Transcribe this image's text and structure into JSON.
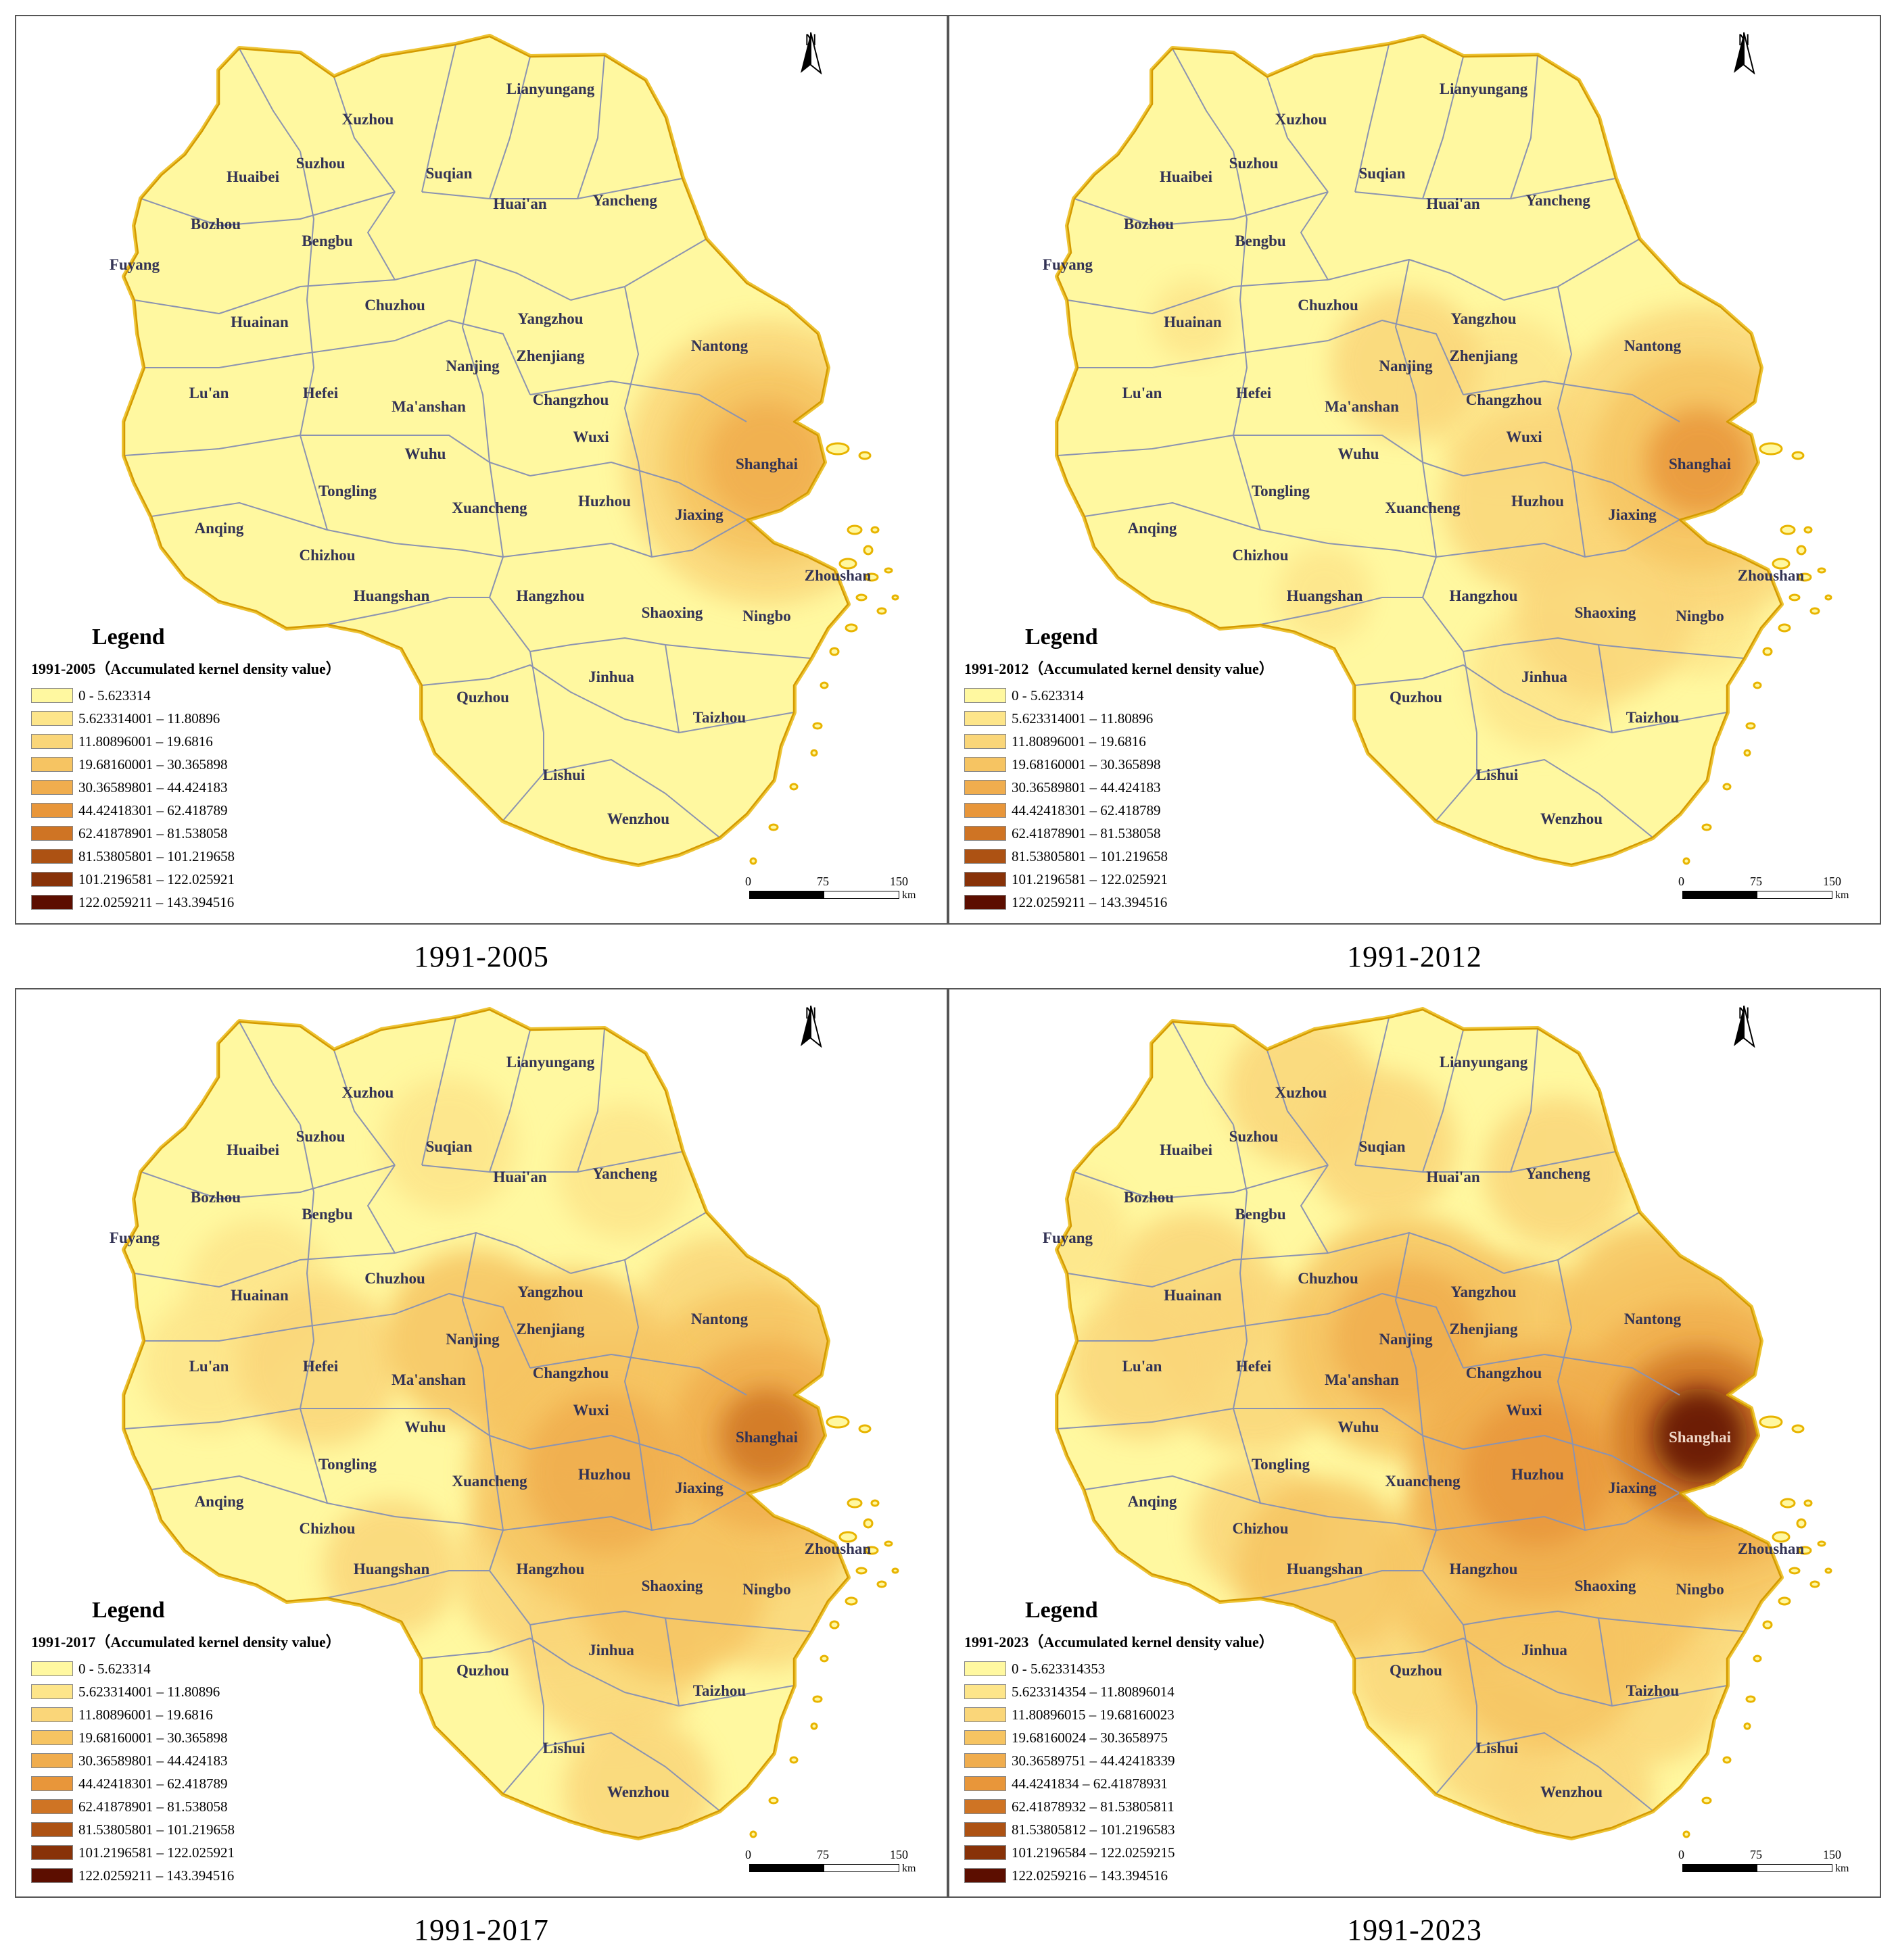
{
  "panels": [
    {
      "caption": "1991-2005",
      "legend_title": "Legend",
      "legend_subtitle": "1991-2005（Accumulated kernel density value）",
      "legend_items": [
        "0 - 5.623314",
        "5.623314001 – 11.80896",
        "11.80896001 – 19.6816",
        "19.68160001 – 30.365898",
        "30.36589801 – 44.424183",
        "44.42418301 – 62.418789",
        "62.41878901 – 81.538058",
        "81.53805801 – 101.219658",
        "101.2196581 – 122.025921",
        "122.0259211 – 143.394516"
      ],
      "hotspots": [
        {
          "city": "Shanghai",
          "level": 4,
          "r": 90
        },
        {
          "city": "Shanghai",
          "level": 3,
          "r": 150
        },
        {
          "city": "Shanghai",
          "level": 2,
          "r": 210
        }
      ]
    },
    {
      "caption": "1991-2012",
      "legend_title": "Legend",
      "legend_subtitle": "1991-2012（Accumulated kernel density value）",
      "legend_items": [
        "0 - 5.623314",
        "5.623314001 – 11.80896",
        "11.80896001 – 19.6816",
        "19.68160001 – 30.365898",
        "30.36589801 – 44.424183",
        "44.42418301 – 62.418789",
        "62.41878901 – 81.538058",
        "81.53805801 – 101.219658",
        "101.2196581 – 122.025921",
        "122.0259211 – 143.394516"
      ],
      "hotspots": [
        {
          "city": "Shanghai",
          "level": 5,
          "r": 80
        },
        {
          "city": "Shanghai",
          "level": 3,
          "r": 160
        },
        {
          "city": "Shanghai",
          "level": 2,
          "r": 230
        },
        {
          "city": "Nanjing",
          "level": 2,
          "r": 110
        },
        {
          "city": "Huzhou",
          "level": 2,
          "r": 140
        },
        {
          "city": "Shaoxing",
          "level": 2,
          "r": 130
        },
        {
          "city": "Jinhua",
          "level": 1,
          "r": 110
        },
        {
          "city": "Ningbo",
          "level": 1,
          "r": 90
        },
        {
          "city": "Changzhou",
          "level": 1,
          "r": 120
        },
        {
          "city": "Huangshan",
          "level": 1,
          "r": 70
        },
        {
          "city": "Huainan",
          "level": 1,
          "r": 60
        }
      ]
    },
    {
      "caption": "1991-2017",
      "legend_title": "Legend",
      "legend_subtitle": "1991-2017（Accumulated kernel density value）",
      "legend_items": [
        "0 - 5.623314",
        "5.623314001 – 11.80896",
        "11.80896001 – 19.6816",
        "19.68160001 – 30.365898",
        "30.36589801 – 44.424183",
        "44.42418301 – 62.418789",
        "62.41878901 – 81.538058",
        "81.53805801 – 101.219658",
        "101.2196581 – 122.025921",
        "122.0259211 – 143.394516"
      ],
      "hotspots": [
        {
          "city": "Shanghai",
          "level": 6,
          "r": 70
        },
        {
          "city": "Shanghai",
          "level": 4,
          "r": 140
        },
        {
          "city": "Shanghai",
          "level": 3,
          "r": 220
        },
        {
          "city": "Huzhou",
          "level": 4,
          "r": 120
        },
        {
          "city": "Huzhou",
          "level": 3,
          "r": 200
        },
        {
          "city": "Nanjing",
          "level": 3,
          "r": 130
        },
        {
          "city": "Changzhou",
          "level": 3,
          "r": 150
        },
        {
          "city": "Shaoxing",
          "level": 3,
          "r": 140
        },
        {
          "city": "Jinhua",
          "level": 2,
          "r": 140
        },
        {
          "city": "Ningbo",
          "level": 2,
          "r": 120
        },
        {
          "city": "Hefei",
          "level": 2,
          "r": 120
        },
        {
          "city": "Wenzhou",
          "level": 2,
          "r": 110
        },
        {
          "city": "Hangzhou",
          "level": 2,
          "r": 140
        },
        {
          "city": "Huangshan",
          "level": 2,
          "r": 100
        },
        {
          "city": "Suqian",
          "level": 1,
          "r": 100
        },
        {
          "city": "Yancheng",
          "level": 1,
          "r": 100
        },
        {
          "city": "Huainan",
          "level": 1,
          "r": 110
        },
        {
          "city": "Lu'an",
          "level": 1,
          "r": 100
        },
        {
          "city": "Nantong",
          "level": 2,
          "r": 120
        }
      ]
    },
    {
      "caption": "1991-2023",
      "legend_title": "Legend",
      "legend_subtitle": "1991-2023（Accumulated kernel density value）",
      "legend_items": [
        "0 - 5.623314353",
        "5.623314354 – 11.80896014",
        "11.80896015 – 19.68160023",
        "19.68160024 – 30.3658975",
        "30.36589751 – 44.42418339",
        "44.4241834 – 62.41878931",
        "62.41878932 – 81.53805811",
        "81.53805812 – 101.2196583",
        "101.2196584 – 122.0259215",
        "122.0259216 – 143.394516"
      ],
      "hotspots": [
        {
          "city": "Shanghai",
          "level": 9,
          "r": 70
        },
        {
          "city": "Shanghai",
          "level": 6,
          "r": 130
        },
        {
          "city": "Shanghai",
          "level": 4,
          "r": 200
        },
        {
          "city": "Shanghai",
          "level": 3,
          "r": 270
        },
        {
          "city": "Huzhou",
          "level": 5,
          "r": 110
        },
        {
          "city": "Huzhou",
          "level": 4,
          "r": 190
        },
        {
          "city": "Nanjing",
          "level": 4,
          "r": 110
        },
        {
          "city": "Nanjing",
          "level": 3,
          "r": 180
        },
        {
          "city": "Changzhou",
          "level": 3,
          "r": 170
        },
        {
          "city": "Nantong",
          "level": 3,
          "r": 140
        },
        {
          "city": "Shaoxing",
          "level": 3,
          "r": 150
        },
        {
          "city": "Jinhua",
          "level": 3,
          "r": 150
        },
        {
          "city": "Ningbo",
          "level": 2,
          "r": 130
        },
        {
          "city": "Hangzhou",
          "level": 3,
          "r": 150
        },
        {
          "city": "Huangshan",
          "level": 3,
          "r": 130
        },
        {
          "city": "Hefei",
          "level": 2,
          "r": 130
        },
        {
          "city": "Wenzhou",
          "level": 2,
          "r": 120
        },
        {
          "city": "Xuzhou",
          "level": 2,
          "r": 110
        },
        {
          "city": "Suqian",
          "level": 2,
          "r": 110
        },
        {
          "city": "Yancheng",
          "level": 2,
          "r": 110
        },
        {
          "city": "Huainan",
          "level": 2,
          "r": 120
        },
        {
          "city": "Lu'an",
          "level": 2,
          "r": 110
        },
        {
          "city": "Chizhou",
          "level": 2,
          "r": 100
        },
        {
          "city": "Fuyang",
          "level": 1,
          "r": 90
        },
        {
          "city": "Taizhou",
          "level": 2,
          "r": 110
        },
        {
          "city": "Quzhou",
          "level": 2,
          "r": 100
        },
        {
          "city": "Lishui",
          "level": 2,
          "r": 100
        }
      ]
    }
  ],
  "palette": [
    "#fff8a0",
    "#fde58a",
    "#fad679",
    "#f6c462",
    "#f0ad4e",
    "#e8963a",
    "#cf7424",
    "#ad5213",
    "#883208",
    "#5c0e00"
  ],
  "boundary_color": "#e8b400",
  "cities": [
    "Lianyungang",
    "Xuzhou",
    "Suzhou",
    "Huaibei",
    "Suqian",
    "Huai'an",
    "Yancheng",
    "Bozhou",
    "Bengbu",
    "Fuyang",
    "Chuzhou",
    "Yangzhou",
    "Huainan",
    "Nantong",
    "Nanjing",
    "Zhenjiang",
    "Lu'an",
    "Hefei",
    "Ma'anshan",
    "Changzhou",
    "Wuxi",
    "Shanghai",
    "Wuhu",
    "Tongling",
    "Xuancheng",
    "Huzhou",
    "Jiaxing",
    "Anqing",
    "Chizhou",
    "Zhoushan",
    "Huangshan",
    "Hangzhou",
    "Shaoxing",
    "Ningbo",
    "Quzhou",
    "Jinhua",
    "Taizhou",
    "Lishui",
    "Wenzhou"
  ],
  "north_label": "N",
  "scale": {
    "labels": [
      "0",
      "75",
      "150"
    ],
    "unit": "km"
  }
}
